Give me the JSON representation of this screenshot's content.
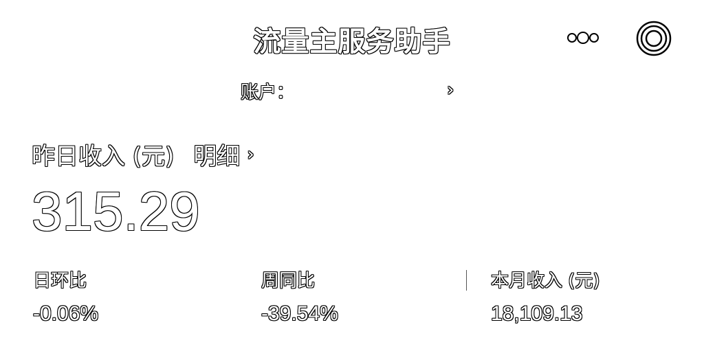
{
  "header": {
    "title": "流量主服务助手",
    "more_icon": "more-dots-icon",
    "target_icon": "target-circle-icon"
  },
  "account": {
    "label": "账户：",
    "chevron": "›"
  },
  "income": {
    "label": "昨日收入 (元)",
    "detail_label": "明细",
    "detail_chevron": "›",
    "value": "315.29"
  },
  "stats": [
    {
      "label": "日环比",
      "value": "-0.06%"
    },
    {
      "label": "周同比",
      "value": "-39.54%"
    },
    {
      "label": "本月收入 (元)",
      "value": "18,109.13"
    }
  ]
}
